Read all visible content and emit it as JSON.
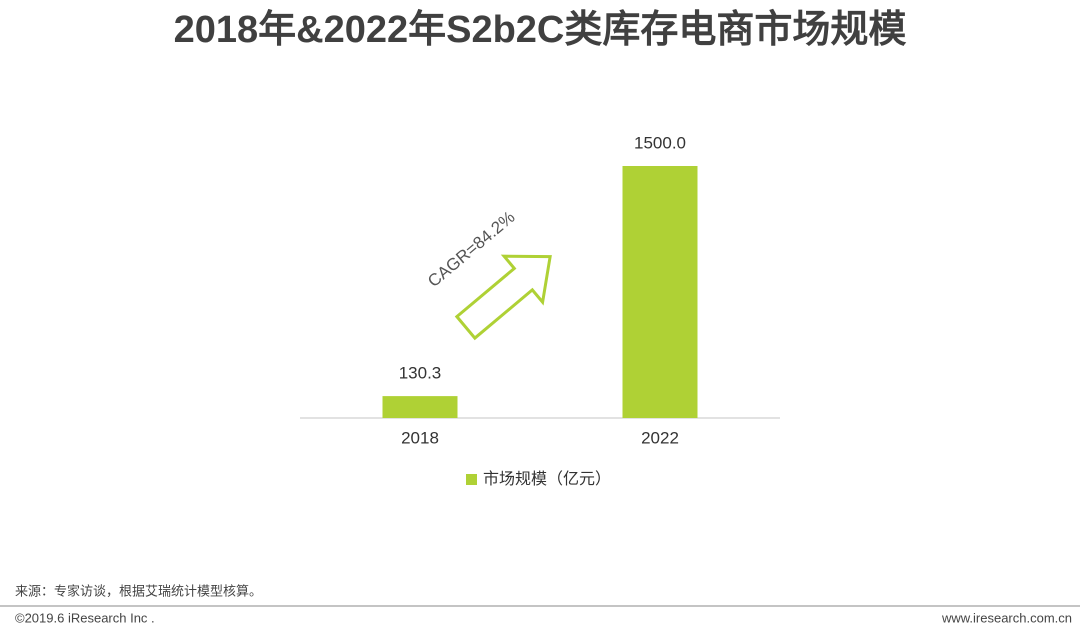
{
  "chart_data": {
    "type": "bar",
    "title": "2018年&2022年S2b2C类库存电商市场规模",
    "categories": [
      "2018",
      "2022"
    ],
    "series": [
      {
        "name": "市场规模（亿元）",
        "color": "#afd135",
        "values": [
          130.3,
          1500
        ],
        "value_labels": [
          "130.3",
          "1500.0"
        ]
      }
    ],
    "annotation": "CAGR=84.2%"
  },
  "footer": {
    "source": "来源：专家访谈，根据艾瑞统计模型核算。",
    "copyright": "©2019.6 iResearch Inc .",
    "website": "www.iresearch.com.cn"
  }
}
